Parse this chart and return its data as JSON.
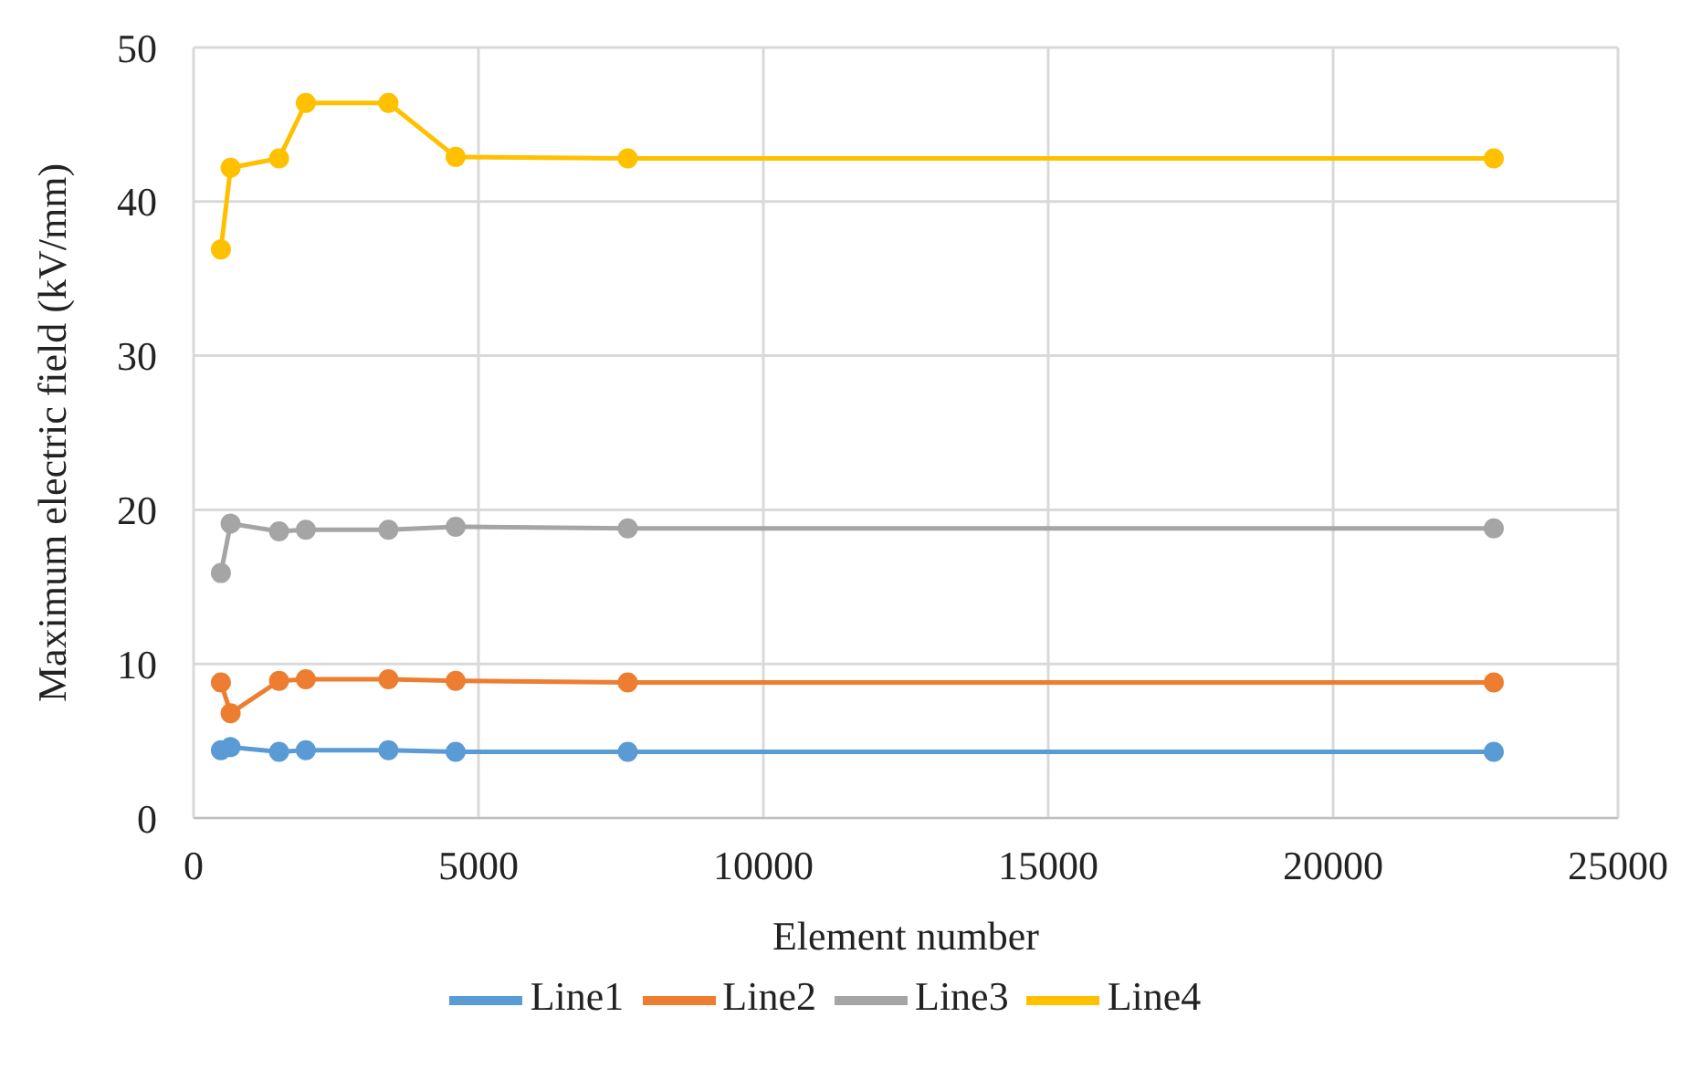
{
  "chart_data": {
    "type": "line",
    "xlabel": "Element number",
    "ylabel": "Maximum electric field (kV/mm)",
    "x": [
      480,
      650,
      1500,
      1970,
      3420,
      4600,
      7620,
      22820
    ],
    "xlim": [
      0,
      25000
    ],
    "xticks": [
      0,
      5000,
      10000,
      15000,
      20000,
      25000
    ],
    "ylim": [
      0,
      50
    ],
    "yticks": [
      0,
      10,
      20,
      30,
      40,
      50
    ],
    "grid": true,
    "legend": "bottom",
    "marker": "circle",
    "line_style": "solid",
    "series": [
      {
        "name": "Line1",
        "color": "#5b9bd5",
        "values": [
          4.4,
          4.6,
          4.3,
          4.4,
          4.4,
          4.3,
          4.3,
          4.3
        ]
      },
      {
        "name": "Line2",
        "color": "#ed7d31",
        "values": [
          8.8,
          6.8,
          8.9,
          9.0,
          9.0,
          8.9,
          8.8,
          8.8
        ]
      },
      {
        "name": "Line3",
        "color": "#a5a5a5",
        "values": [
          15.9,
          19.1,
          18.6,
          18.7,
          18.7,
          18.9,
          18.8,
          18.8
        ]
      },
      {
        "name": "Line4",
        "color": "#ffc000",
        "values": [
          36.9,
          42.2,
          42.8,
          46.4,
          46.4,
          42.9,
          42.8,
          42.8
        ]
      }
    ]
  }
}
